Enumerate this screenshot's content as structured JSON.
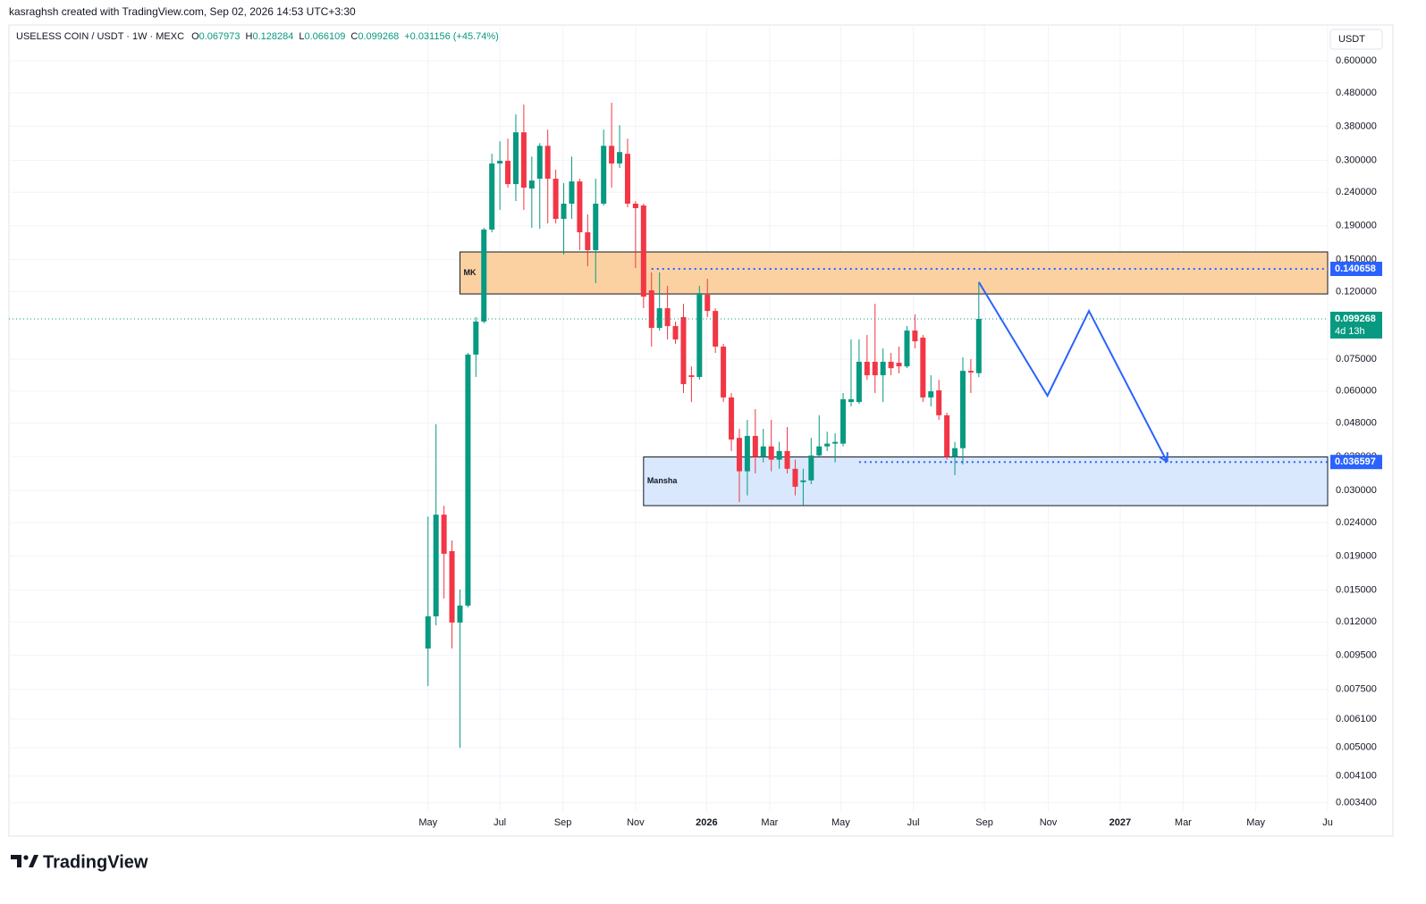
{
  "header": {
    "credit": "kasraghsh created with TradingView.com, Sep 02, 2026 14:53 UTC+3:30",
    "brand": "TradingView"
  },
  "chart_data": {
    "type": "candlestick",
    "legend": {
      "symbol": "USELESS COIN / USDT · 1W · MEXC",
      "fields": [
        {
          "key": "O",
          "text": "0.067973"
        },
        {
          "key": "H",
          "text": "0.128284"
        },
        {
          "key": "L",
          "text": "0.066109"
        },
        {
          "key": "C",
          "text": "0.099268"
        }
      ],
      "change": "+0.031156 (+45.74%)"
    },
    "currency": "USDT",
    "log_scale": true,
    "grid": true,
    "up_color": "#089981",
    "down_color": "#f23645",
    "xlim": [
      -52.5,
      112.7
    ],
    "xticks": [
      {
        "value": 0,
        "label": "May"
      },
      {
        "value": 9,
        "label": "Jul"
      },
      {
        "value": 16.9,
        "label": "Sep"
      },
      {
        "value": 26,
        "label": "Nov"
      },
      {
        "value": 34.9,
        "label": "2026"
      },
      {
        "value": 42.8,
        "label": "Mar"
      },
      {
        "value": 51.7,
        "label": "May"
      },
      {
        "value": 60.8,
        "label": "Jul"
      },
      {
        "value": 69.7,
        "label": "Sep"
      },
      {
        "value": 77.7,
        "label": "Nov"
      },
      {
        "value": 86.7,
        "label": "2027"
      },
      {
        "value": 94.6,
        "label": "Mar"
      },
      {
        "value": 103.7,
        "label": "May"
      },
      {
        "value": 112.7,
        "label": "Ju"
      }
    ],
    "ylim": [
      0.00321,
      0.77
    ],
    "yticks": [
      {
        "value": 0.6,
        "label": "0.600000"
      },
      {
        "value": 0.48,
        "label": "0.480000"
      },
      {
        "value": 0.38,
        "label": "0.380000"
      },
      {
        "value": 0.3,
        "label": "0.300000"
      },
      {
        "value": 0.24,
        "label": "0.240000"
      },
      {
        "value": 0.19,
        "label": "0.190000"
      },
      {
        "value": 0.15,
        "label": "0.150000"
      },
      {
        "value": 0.12,
        "label": "0.120000"
      },
      {
        "value": 0.075,
        "label": "0.075000"
      },
      {
        "value": 0.06,
        "label": "0.060000"
      },
      {
        "value": 0.048,
        "label": "0.048000"
      },
      {
        "value": 0.038,
        "label": "0.038000"
      },
      {
        "value": 0.03,
        "label": "0.030000"
      },
      {
        "value": 0.024,
        "label": "0.024000"
      },
      {
        "value": 0.019,
        "label": "0.019000"
      },
      {
        "value": 0.015,
        "label": "0.015000"
      },
      {
        "value": 0.012,
        "label": "0.012000"
      },
      {
        "value": 0.0095,
        "label": "0.009500"
      },
      {
        "value": 0.0075,
        "label": "0.007500"
      },
      {
        "value": 0.0061,
        "label": "0.006100"
      },
      {
        "value": 0.005,
        "label": "0.005000"
      },
      {
        "value": 0.0041,
        "label": "0.004100"
      },
      {
        "value": 0.0034,
        "label": "0.003400"
      }
    ],
    "candles": {
      "x": [
        0,
        1,
        2,
        3,
        4,
        5,
        6,
        7,
        8,
        9,
        10,
        11,
        12,
        13,
        14,
        15,
        16,
        17,
        18,
        19,
        20,
        21,
        22,
        23,
        24,
        25,
        26,
        27,
        28,
        29,
        30,
        31,
        32,
        33,
        34,
        35,
        36,
        37,
        38,
        39,
        40,
        41,
        42,
        43,
        44,
        45,
        46,
        47,
        48,
        49,
        50,
        51,
        52,
        53,
        54,
        55,
        56,
        57,
        58,
        59,
        60,
        61,
        62,
        63,
        64,
        65,
        66,
        67,
        68,
        69
      ],
      "open": [
        0.00997,
        0.01248,
        0.02535,
        0.01966,
        0.01195,
        0.01345,
        0.0774,
        0.0974,
        0.185,
        0.2932,
        0.2987,
        0.254,
        0.3644,
        0.2463,
        0.2637,
        0.3317,
        0.2637,
        0.1993,
        0.2216,
        0.2588,
        0.1815,
        0.1603,
        0.2216,
        0.3317,
        0.2932,
        0.3137,
        0.2216,
        0.2188,
        0.1211,
        0.0932,
        0.1069,
        0.0944,
        0.1005,
        0.067,
        0.0662,
        0.1174,
        0.1049,
        0.0818,
        0.0574,
        0.0433,
        0.0343,
        0.0439,
        0.0379,
        0.0408,
        0.0372,
        0.0395,
        0.0349,
        0.0318,
        0.0322,
        0.0383,
        0.0408,
        0.0416,
        0.0416,
        0.0556,
        0.0556,
        0.0736,
        0.0736,
        0.067,
        0.0736,
        0.0731,
        0.0713,
        0.0915,
        0.0871,
        0.0574,
        0.0603,
        0.0507,
        0.0379,
        0.0403,
        0.0691,
        0.067973
      ],
      "high": [
        0.02503,
        0.04763,
        0.02697,
        0.02118,
        0.01504,
        0.07833,
        0.1005,
        0.1873,
        0.3137,
        0.3424,
        0.3488,
        0.4129,
        0.4422,
        0.3078,
        0.338,
        0.3712,
        0.2807,
        0.2556,
        0.3078,
        0.2637,
        0.2056,
        0.2637,
        0.3712,
        0.4477,
        0.383,
        0.3488,
        0.2257,
        0.2216,
        0.1372,
        0.1372,
        0.1249,
        0.0974,
        0.1103,
        0.0713,
        0.1249,
        0.1313,
        0.1069,
        0.0834,
        0.0592,
        0.0461,
        0.0491,
        0.0529,
        0.0461,
        0.0491,
        0.0421,
        0.0467,
        0.0372,
        0.0349,
        0.0433,
        0.0507,
        0.0452,
        0.0447,
        0.0592,
        0.086,
        0.086,
        0.0887,
        0.1103,
        0.0808,
        0.0783,
        0.0818,
        0.0944,
        0.1024,
        0.0887,
        0.067,
        0.0649,
        0.0516,
        0.0421,
        0.0759,
        0.075,
        0.128284
      ],
      "low": [
        0.00768,
        0.01172,
        0.01413,
        0.00997,
        0.00499,
        0.01328,
        0.0662,
        0.0962,
        0.1815,
        0.2121,
        0.2478,
        0.2257,
        0.2121,
        0.1873,
        0.1861,
        0.1932,
        0.1932,
        0.1554,
        0.1993,
        0.1603,
        0.1433,
        0.1273,
        0.2188,
        0.2478,
        0.2842,
        0.2161,
        0.1415,
        0.1069,
        0.0818,
        0.0915,
        0.086,
        0.0834,
        0.0592,
        0.0556,
        0.0649,
        0.1005,
        0.0783,
        0.0556,
        0.0395,
        0.0277,
        0.029,
        0.0338,
        0.0365,
        0.0343,
        0.0349,
        0.0338,
        0.029,
        0.0271,
        0.0314,
        0.0379,
        0.0395,
        0.0365,
        0.0408,
        0.0539,
        0.0549,
        0.0649,
        0.0592,
        0.0556,
        0.067,
        0.0679,
        0.0704,
        0.0808,
        0.0556,
        0.0539,
        0.0491,
        0.0372,
        0.0334,
        0.036,
        0.0592,
        0.066109
      ],
      "close": [
        0.01248,
        0.02535,
        0.0193,
        0.01195,
        0.01345,
        0.0774,
        0.0974,
        0.185,
        0.2932,
        0.2987,
        0.254,
        0.3644,
        0.2478,
        0.2604,
        0.3317,
        0.2637,
        0.1993,
        0.2216,
        0.2588,
        0.1815,
        0.1603,
        0.2216,
        0.3317,
        0.2932,
        0.3176,
        0.2216,
        0.2148,
        0.1159,
        0.0932,
        0.1069,
        0.0944,
        0.086,
        0.063,
        0.0662,
        0.1188,
        0.1049,
        0.0818,
        0.0574,
        0.0428,
        0.0343,
        0.0439,
        0.0379,
        0.0408,
        0.0372,
        0.0395,
        0.0349,
        0.0308,
        0.0322,
        0.0383,
        0.0408,
        0.0416,
        0.0421,
        0.0567,
        0.0567,
        0.0736,
        0.067,
        0.067,
        0.0736,
        0.0704,
        0.0713,
        0.0915,
        0.0849,
        0.0574,
        0.0599,
        0.0507,
        0.0379,
        0.0403,
        0.0691,
        0.0683,
        0.099268
      ]
    },
    "zones": [
      {
        "label": "MK",
        "x0": 4,
        "top": 0.1583,
        "bottom": 0.1181,
        "color": "#fbd1a2"
      },
      {
        "label": "Mansha",
        "x0": 27,
        "top": 0.0379,
        "bottom": 0.027,
        "color": "#d9e8fc"
      }
    ],
    "price_lines": [
      {
        "value": 0.140658,
        "x0": 28,
        "color": "#2962ff"
      },
      {
        "value": 0.036597,
        "x0": 54,
        "color": "#2962ff"
      }
    ],
    "last_price": {
      "value": 0.099268,
      "countdown": "4d 13h",
      "color": "#089981"
    },
    "forecast_path": {
      "x": [
        69,
        77.6,
        82.8,
        92.6
      ],
      "y": [
        0.1283,
        0.0581,
        0.1049,
        0.0366
      ],
      "color": "#2962ff"
    }
  }
}
